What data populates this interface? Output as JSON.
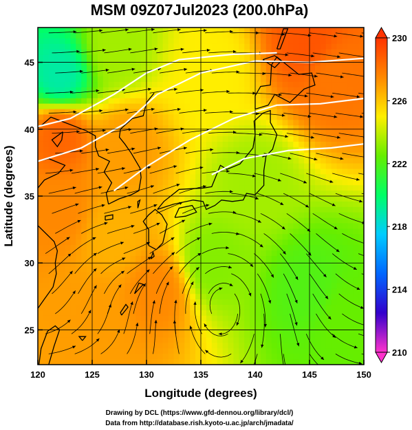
{
  "chart_data": {
    "type": "heatmap",
    "title": "MSM 09Z07Jul2023 (200.0hPa)",
    "xlabel": "Longitude (degrees)",
    "ylabel": "Latitude  (degrees)",
    "xlim": [
      120,
      150
    ],
    "ylim": [
      22.4,
      47.6
    ],
    "xticks": [
      "120",
      "125",
      "130",
      "135",
      "140",
      "145",
      "150"
    ],
    "yticks": [
      "25",
      "30",
      "35",
      "40",
      "45"
    ],
    "grid": true,
    "colorbar": {
      "range": [
        210,
        230
      ],
      "tick_labels": [
        "230",
        "226",
        "222",
        "218",
        "214",
        "210"
      ],
      "colors": [
        "#ff33cc",
        "#3300cc",
        "#0066ff",
        "#00ccff",
        "#00ff66",
        "#66ee00",
        "#ffee00",
        "#ff8800",
        "#ff3300"
      ]
    },
    "field": {
      "variable": "temperature",
      "centers": [
        {
          "lon": 122,
          "lat": 44,
          "value": 219
        },
        {
          "lon": 122,
          "lat": 39.5,
          "value": 228.5
        },
        {
          "lon": 128,
          "lat": 38.5,
          "value": 227
        },
        {
          "lon": 145,
          "lat": 46.5,
          "value": 229
        },
        {
          "lon": 147,
          "lat": 44,
          "value": 228
        },
        {
          "lon": 140,
          "lat": 36,
          "value": 223.5
        },
        {
          "lon": 145,
          "lat": 28,
          "value": 222
        },
        {
          "lon": 148,
          "lat": 26,
          "value": 222.5
        },
        {
          "lon": 136,
          "lat": 30,
          "value": 223
        },
        {
          "lon": 127,
          "lat": 32,
          "value": 226.5
        },
        {
          "lon": 125,
          "lat": 26,
          "value": 227
        },
        {
          "lon": 131,
          "lat": 28,
          "value": 227.5
        },
        {
          "lon": 122,
          "lat": 34,
          "value": 227.5
        },
        {
          "lon": 127,
          "lat": 46,
          "value": 223.5
        },
        {
          "lon": 136,
          "lat": 44,
          "value": 225
        }
      ]
    },
    "jet_contours": [
      {
        "points": [
          [
            120,
            37.6
          ],
          [
            124,
            38.6
          ],
          [
            128,
            40.4
          ],
          [
            131,
            42.6
          ],
          [
            135,
            44.2
          ],
          [
            140,
            45.1
          ],
          [
            145,
            45.0
          ],
          [
            150,
            45.3
          ]
        ]
      },
      {
        "points": [
          [
            120,
            40.2
          ],
          [
            123,
            40.8
          ],
          [
            127,
            42.6
          ],
          [
            130,
            44.2
          ],
          [
            133,
            45.2
          ],
          [
            138,
            45.6
          ],
          [
            142,
            45.7
          ]
        ]
      },
      {
        "points": [
          [
            127,
            35.4
          ],
          [
            130,
            37.2
          ],
          [
            134,
            39.2
          ],
          [
            138,
            40.8
          ],
          [
            142,
            41.8
          ],
          [
            146,
            41.9
          ],
          [
            150,
            42.3
          ]
        ]
      },
      {
        "points": [
          [
            136,
            36.6
          ],
          [
            139,
            37.8
          ],
          [
            143,
            38.4
          ],
          [
            147,
            38.6
          ],
          [
            150,
            38.9
          ]
        ]
      }
    ],
    "credits": [
      "Drawing by DCL (https://www.gfd-dennou.org/library/dcl/)",
      "Data from http://database.rish.kyoto-u.ac.jp/arch/jmadata/"
    ]
  }
}
